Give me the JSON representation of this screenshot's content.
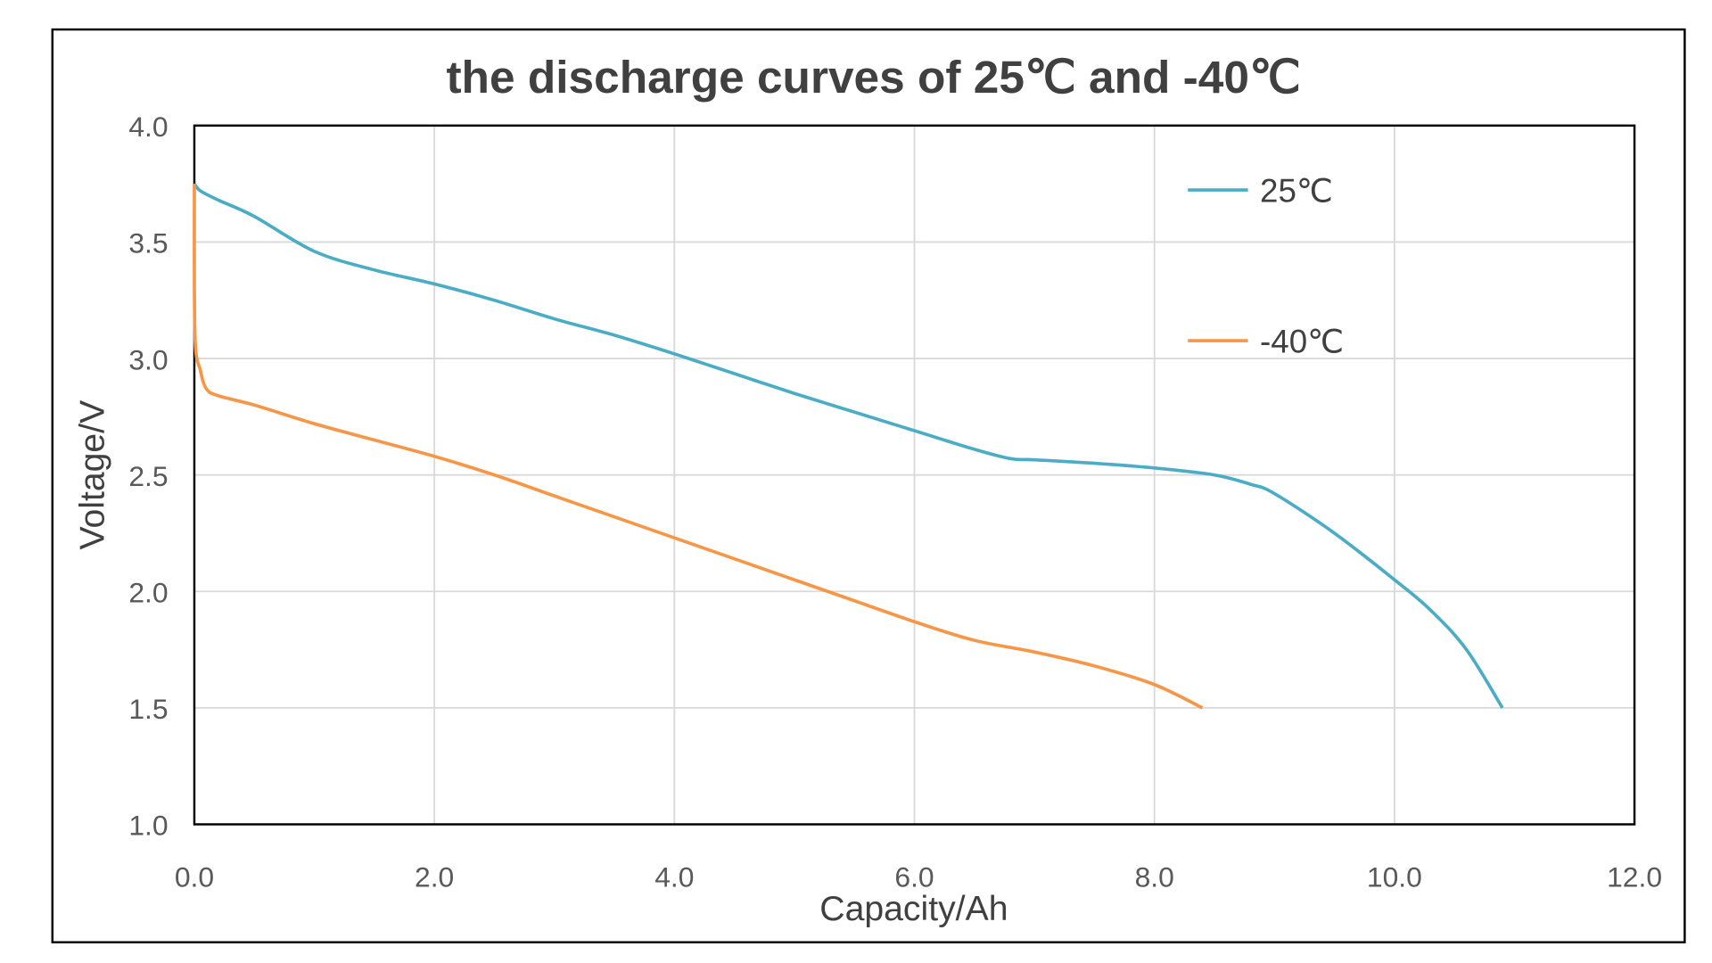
{
  "chart_data": {
    "type": "line",
    "title": "the discharge curves of 25℃ and -40℃",
    "xlabel": "Capacity/Ah",
    "ylabel": "Voltage/V",
    "xlim": [
      0,
      12
    ],
    "ylim": [
      1,
      4
    ],
    "xticks": [
      "0.0",
      "2.0",
      "4.0",
      "6.0",
      "8.0",
      "10.0",
      "12.0"
    ],
    "yticks": [
      "1.0",
      "1.5",
      "2.0",
      "2.5",
      "3.0",
      "3.5",
      "4.0"
    ],
    "grid": true,
    "legend_position": "top-right",
    "series": [
      {
        "name": "25℃",
        "color": "#4BACC6",
        "x": [
          0,
          0.05,
          0.2,
          0.5,
          1,
          1.5,
          2,
          2.5,
          3,
          3.5,
          4,
          4.5,
          5,
          5.5,
          6,
          6.5,
          6.8,
          7,
          7.5,
          8,
          8.5,
          8.8,
          9,
          9.5,
          10,
          10.3,
          10.6,
          10.9
        ],
        "y": [
          3.75,
          3.72,
          3.68,
          3.61,
          3.46,
          3.38,
          3.32,
          3.25,
          3.17,
          3.1,
          3.02,
          2.935,
          2.85,
          2.77,
          2.69,
          2.61,
          2.57,
          2.565,
          2.55,
          2.53,
          2.5,
          2.46,
          2.42,
          2.25,
          2.05,
          1.92,
          1.75,
          1.5
        ]
      },
      {
        "name": "-40℃",
        "color": "#F79646",
        "x": [
          0,
          0.005,
          0.05,
          0.1,
          0.2,
          0.5,
          1,
          1.5,
          2,
          2.5,
          3,
          3.5,
          4,
          4.5,
          5,
          5.5,
          6,
          6.5,
          7,
          7.5,
          8,
          8.4
        ],
        "y": [
          3.75,
          3.1,
          2.95,
          2.87,
          2.84,
          2.8,
          2.72,
          2.65,
          2.58,
          2.5,
          2.41,
          2.32,
          2.23,
          2.14,
          2.05,
          1.96,
          1.87,
          1.79,
          1.74,
          1.68,
          1.6,
          1.5
        ]
      }
    ]
  }
}
